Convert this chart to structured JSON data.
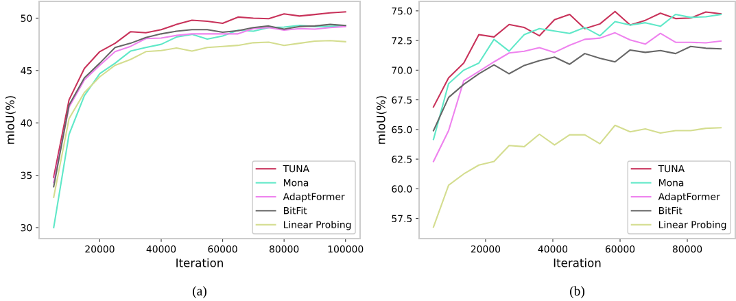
{
  "chart_data": [
    {
      "type": "line",
      "xlabel": "Iteration",
      "ylabel": "mIoU(%)",
      "annotations": [
        "(a)"
      ],
      "x": [
        5000,
        10000,
        15000,
        20000,
        25000,
        30000,
        35000,
        40000,
        45000,
        50000,
        55000,
        60000,
        65000,
        70000,
        75000,
        80000,
        85000,
        90000,
        95000,
        100000
      ],
      "xlim": [
        250,
        104750
      ],
      "xticks": [
        20000,
        40000,
        60000,
        80000,
        100000
      ],
      "ylim": [
        28.95,
        51.6
      ],
      "yticks": [
        30,
        35,
        40,
        45,
        50
      ],
      "grid": false,
      "legend": "bottom right",
      "marker": "none",
      "line_style": "solid",
      "series": [
        {
          "name": "TUNA",
          "color": "#c8325a",
          "values": [
            34.8,
            42.2,
            45.2,
            46.8,
            47.6,
            48.7,
            48.6,
            48.9,
            49.4,
            49.8,
            49.7,
            49.5,
            50.1,
            50.0,
            49.95,
            50.4,
            50.2,
            50.35,
            50.5,
            50.6
          ]
        },
        {
          "name": "Mona",
          "color": "#5fe8c8",
          "values": [
            30.0,
            38.9,
            42.6,
            44.7,
            45.7,
            46.85,
            47.2,
            47.5,
            48.2,
            48.45,
            48.0,
            48.3,
            48.85,
            48.75,
            49.1,
            49.15,
            49.3,
            49.2,
            49.2,
            49.3
          ]
        },
        {
          "name": "AdaptFormer",
          "color": "#ee82ee",
          "values": [
            34.3,
            41.5,
            44.1,
            45.5,
            46.8,
            47.3,
            48.05,
            48.1,
            48.35,
            48.5,
            48.5,
            48.5,
            48.5,
            49.0,
            49.1,
            48.85,
            49.0,
            48.95,
            49.1,
            49.2
          ]
        },
        {
          "name": "BitFit",
          "color": "#666666",
          "values": [
            33.9,
            41.7,
            44.3,
            45.7,
            47.2,
            47.6,
            48.15,
            48.5,
            48.75,
            48.9,
            48.9,
            48.65,
            48.8,
            49.1,
            49.25,
            48.95,
            49.2,
            49.25,
            49.4,
            49.3
          ]
        },
        {
          "name": "Linear Probing",
          "color": "#d4dd8f",
          "values": [
            32.9,
            40.4,
            42.9,
            44.4,
            45.5,
            46.05,
            46.8,
            46.9,
            47.15,
            46.85,
            47.2,
            47.3,
            47.4,
            47.65,
            47.7,
            47.4,
            47.6,
            47.8,
            47.85,
            47.75
          ]
        }
      ]
    },
    {
      "type": "line",
      "xlabel": "Iteration",
      "ylabel": "mIoU(%)",
      "annotations": [
        "(b)"
      ],
      "x": [
        4500,
        9000,
        13500,
        18000,
        22500,
        27000,
        31500,
        36000,
        40500,
        45000,
        49500,
        54000,
        58500,
        63000,
        67500,
        72000,
        76500,
        81000,
        85500,
        90000
      ],
      "xlim": [
        225,
        94275
      ],
      "xticks": [
        20000,
        40000,
        60000,
        80000
      ],
      "ylim": [
        55.8,
        75.8
      ],
      "yticks": [
        57.5,
        {
          "value": 60,
          "label": "60.0"
        },
        62.5,
        {
          "value": 65,
          "label": "65.0"
        },
        67.5,
        {
          "value": 70,
          "label": "70.0"
        },
        72.5,
        {
          "value": 75,
          "label": "75.0"
        }
      ],
      "grid": false,
      "legend": "bottom right",
      "marker": "none",
      "line_style": "solid",
      "series": [
        {
          "name": "TUNA",
          "color": "#c8325a",
          "values": [
            66.9,
            69.35,
            70.6,
            73.0,
            72.8,
            73.85,
            73.6,
            72.9,
            74.25,
            74.7,
            73.5,
            73.9,
            74.95,
            73.8,
            74.2,
            74.8,
            74.35,
            74.4,
            74.9,
            74.75
          ]
        },
        {
          "name": "Mona",
          "color": "#5fe8c8",
          "values": [
            64.16,
            68.86,
            70.0,
            70.6,
            72.6,
            71.6,
            73.0,
            73.5,
            73.3,
            73.1,
            73.6,
            72.9,
            74.1,
            73.8,
            74.0,
            73.7,
            74.7,
            74.45,
            74.5,
            74.7
          ]
        },
        {
          "name": "AdaptFormer",
          "color": "#ee82ee",
          "values": [
            62.3,
            64.9,
            69.1,
            69.9,
            70.7,
            71.45,
            71.6,
            71.9,
            71.5,
            72.1,
            72.6,
            72.7,
            73.15,
            72.55,
            72.2,
            73.1,
            72.35,
            72.35,
            72.3,
            72.45
          ]
        },
        {
          "name": "BitFit",
          "color": "#666666",
          "values": [
            64.9,
            67.7,
            68.8,
            69.7,
            70.45,
            69.7,
            70.4,
            70.8,
            71.1,
            70.5,
            71.4,
            71.0,
            70.7,
            71.7,
            71.5,
            71.65,
            71.4,
            72.0,
            71.85,
            71.8
          ]
        },
        {
          "name": "Linear Probing",
          "color": "#d4dd8f",
          "values": [
            56.77,
            60.3,
            61.25,
            62.0,
            62.3,
            63.65,
            63.55,
            64.6,
            63.7,
            64.55,
            64.55,
            63.8,
            65.35,
            64.8,
            65.05,
            64.7,
            64.9,
            64.9,
            65.1,
            65.15
          ]
        }
      ]
    }
  ]
}
